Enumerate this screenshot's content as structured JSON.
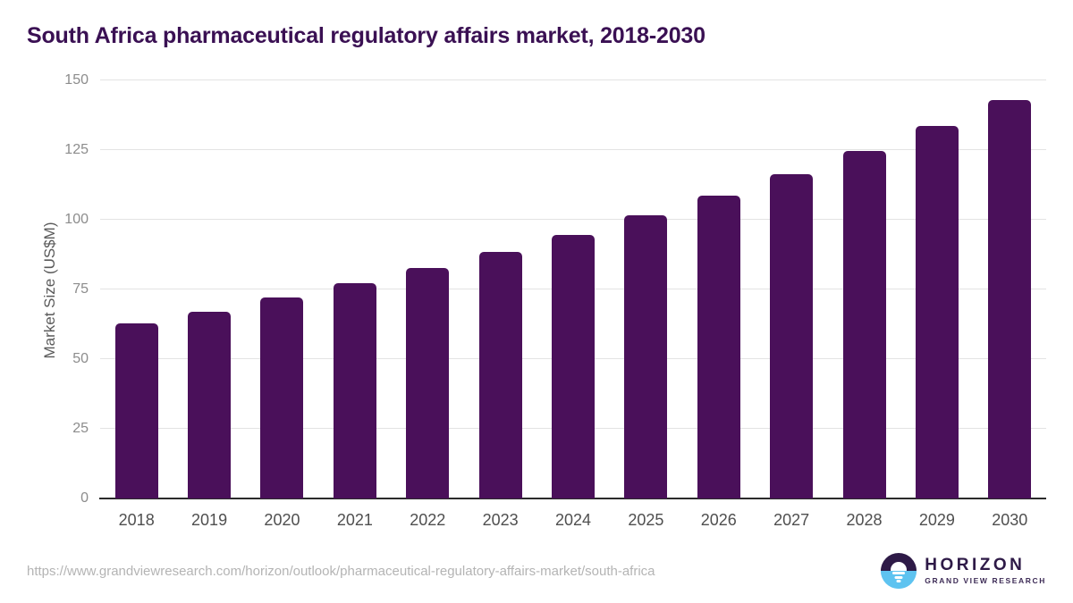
{
  "title": "South Africa pharmaceutical regulatory affairs market, 2018-2030",
  "footer": {
    "source_url": "https://www.grandviewresearch.com/horizon/outlook/pharmaceutical-regulatory-affairs-market/south-africa",
    "logo": {
      "name": "HORIZON",
      "subtitle": "GRAND VIEW RESEARCH"
    }
  },
  "colors": {
    "bar": "#4a105a",
    "title": "#3a1053",
    "gridline": "#e3e3e3",
    "axis_line": "#2b2b2b",
    "y_tick_label": "#8c8c8c",
    "x_tick_label": "#4f4f4f",
    "y_axis_title": "#5a5a5a",
    "source_url": "#b4b4b4",
    "logo_purple": "#2e1a47",
    "logo_blue": "#5ec3f0"
  },
  "chart_data": {
    "type": "bar",
    "title": "South Africa pharmaceutical regulatory affairs market, 2018-2030",
    "categories": [
      "2018",
      "2019",
      "2020",
      "2021",
      "2022",
      "2023",
      "2024",
      "2025",
      "2026",
      "2027",
      "2028",
      "2029",
      "2030"
    ],
    "values": [
      62.7,
      67.1,
      72.1,
      77.1,
      82.7,
      88.4,
      94.6,
      101.5,
      108.6,
      116.2,
      124.7,
      133.6,
      143.1
    ],
    "xlabel": "",
    "ylabel": "Market Size (US$M)",
    "ylim": [
      0,
      150
    ],
    "yticks": [
      0,
      25,
      50,
      75,
      100,
      125,
      150
    ],
    "grid": true,
    "legend": "none"
  }
}
